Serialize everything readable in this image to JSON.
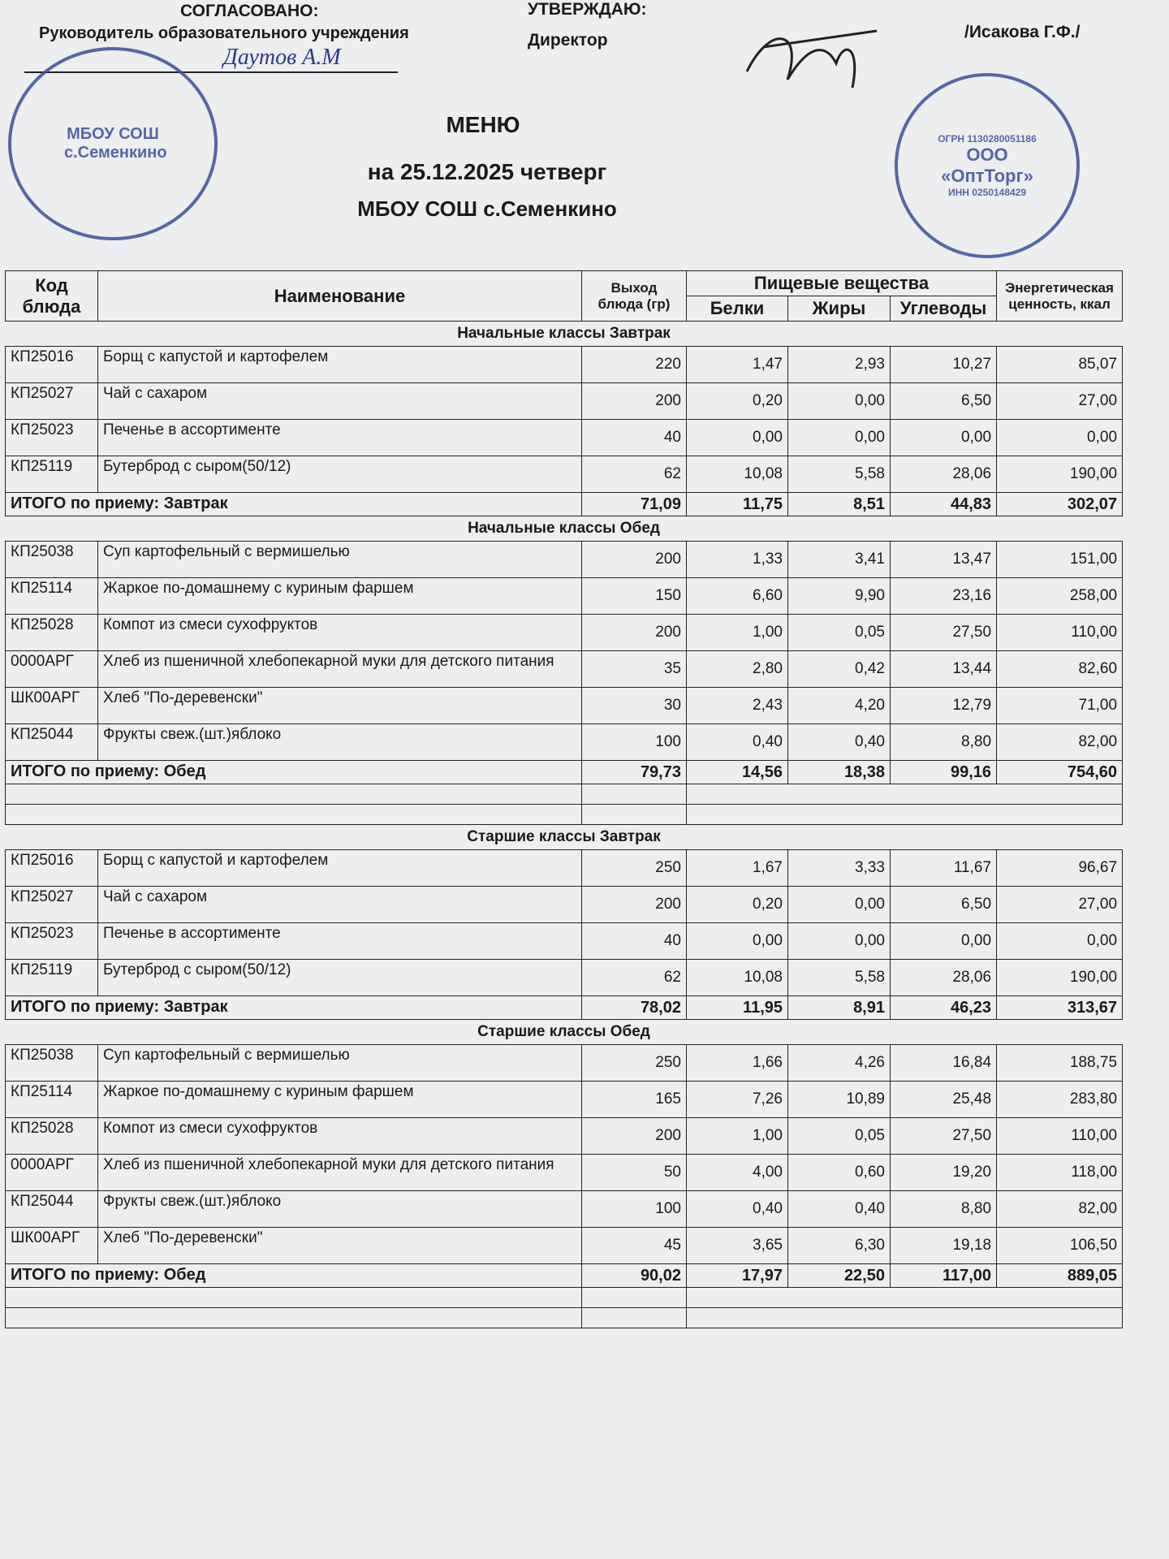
{
  "header": {
    "approved_label": "СОГЛАСОВАНО:",
    "approved_role": "Руководитель образовательного учреждения",
    "approved_name": "Даутов А.М",
    "confirm_label": "УТВЕРЖДАЮ:",
    "confirm_role": "Директор",
    "confirm_name": "/Исакова Г.Ф./",
    "stamp_left": "МБОУ СОШ с.Семенкино",
    "stamp_right_org": "ООО «ОптТорг»",
    "stamp_right_inn": "ИНН 0250148429",
    "stamp_right_ogrn": "ОГРН 1130280051186"
  },
  "title": {
    "heading": "МЕНЮ",
    "date": "на 25.12.2025  четверг",
    "school": "МБОУ СОШ с.Семенкино"
  },
  "table": {
    "columns": {
      "code": "Код блюда",
      "name": "Наименование",
      "yield": "Выход блюда (гр)",
      "nutrients": "Пищевые вещества",
      "protein": "Белки",
      "fat": "Жиры",
      "carbs": "Углеводы",
      "energy": "Энергетическая ценность, ккал"
    },
    "sections": [
      {
        "title": "Начальные классы Завтрак",
        "rows": [
          [
            "КП25016",
            "Борщ с капустой и картофелем",
            "220",
            "1,47",
            "2,93",
            "10,27",
            "85,07"
          ],
          [
            "КП25027",
            "Чай с сахаром",
            "200",
            "0,20",
            "0,00",
            "6,50",
            "27,00"
          ],
          [
            "КП25023",
            "Печенье в ассортименте",
            "40",
            "0,00",
            "0,00",
            "0,00",
            "0,00"
          ],
          [
            "КП25119",
            "Бутерброд с сыром(50/12)",
            "62",
            "10,08",
            "5,58",
            "28,06",
            "190,00"
          ]
        ],
        "total": [
          "ИТОГО по приему: Завтрак",
          "71,09",
          "11,75",
          "8,51",
          "44,83",
          "302,07"
        ]
      },
      {
        "title": "Начальные классы Обед",
        "rows": [
          [
            "КП25038",
            "Суп картофельный с вермишелью",
            "200",
            "1,33",
            "3,41",
            "13,47",
            "151,00"
          ],
          [
            "КП25114",
            "Жаркое по-домашнему с куриным фаршем",
            "150",
            "6,60",
            "9,90",
            "23,16",
            "258,00"
          ],
          [
            "КП25028",
            "Компот из смеси сухофруктов",
            "200",
            "1,00",
            "0,05",
            "27,50",
            "110,00"
          ],
          [
            "0000АРГ",
            "Хлеб из пшеничной хлебопекарной муки для детского питания",
            "35",
            "2,80",
            "0,42",
            "13,44",
            "82,60"
          ],
          [
            "ШК00АРГ",
            "Хлеб \"По-деревенски\"",
            "30",
            "2,43",
            "4,20",
            "12,79",
            "71,00"
          ],
          [
            "КП25044",
            "Фрукты свеж.(шт.)яблоко",
            "100",
            "0,40",
            "0,40",
            "8,80",
            "82,00"
          ]
        ],
        "total": [
          "ИТОГО по приему: Обед",
          "79,73",
          "14,56",
          "18,38",
          "99,16",
          "754,60"
        ]
      },
      {
        "title": "Старшие классы Завтрак",
        "rows": [
          [
            "КП25016",
            "Борщ с капустой и картофелем",
            "250",
            "1,67",
            "3,33",
            "11,67",
            "96,67"
          ],
          [
            "КП25027",
            "Чай с сахаром",
            "200",
            "0,20",
            "0,00",
            "6,50",
            "27,00"
          ],
          [
            "КП25023",
            "Печенье в ассортименте",
            "40",
            "0,00",
            "0,00",
            "0,00",
            "0,00"
          ],
          [
            "КП25119",
            "Бутерброд с сыром(50/12)",
            "62",
            "10,08",
            "5,58",
            "28,06",
            "190,00"
          ]
        ],
        "total": [
          "ИТОГО по приему: Завтрак",
          "78,02",
          "11,95",
          "8,91",
          "46,23",
          "313,67"
        ]
      },
      {
        "title": "Старшие классы Обед",
        "rows": [
          [
            "КП25038",
            "Суп картофельный с вермишелью",
            "250",
            "1,66",
            "4,26",
            "16,84",
            "188,75"
          ],
          [
            "КП25114",
            "Жаркое по-домашнему с куриным фаршем",
            "165",
            "7,26",
            "10,89",
            "25,48",
            "283,80"
          ],
          [
            "КП25028",
            "Компот из смеси сухофруктов",
            "200",
            "1,00",
            "0,05",
            "27,50",
            "110,00"
          ],
          [
            "0000АРГ",
            "Хлеб из пшеничной хлебопекарной муки для детского питания",
            "50",
            "4,00",
            "0,60",
            "19,20",
            "118,00"
          ],
          [
            "КП25044",
            "Фрукты свеж.(шт.)яблоко",
            "100",
            "0,40",
            "0,40",
            "8,80",
            "82,00"
          ],
          [
            "ШК00АРГ",
            "Хлеб \"По-деревенски\"",
            "45",
            "3,65",
            "6,30",
            "19,18",
            "106,50"
          ]
        ],
        "total": [
          "ИТОГО по приему: Обед",
          "90,02",
          "17,97",
          "22,50",
          "117,00",
          "889,05"
        ]
      }
    ]
  }
}
